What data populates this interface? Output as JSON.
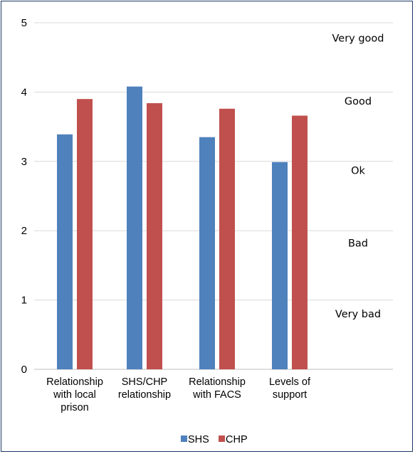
{
  "chart_data": {
    "type": "bar",
    "categories": [
      [
        "Relationship",
        "with local",
        "prison"
      ],
      [
        "SHS/CHP",
        "relationship"
      ],
      [
        "Relationship",
        "with FACS"
      ],
      [
        "Levels of",
        "support"
      ]
    ],
    "series": [
      {
        "name": "SHS",
        "values": [
          3.39,
          4.08,
          3.35,
          2.99
        ],
        "color": "#4f81bd"
      },
      {
        "name": "CHP",
        "values": [
          3.9,
          3.84,
          3.76,
          3.66
        ],
        "color": "#c0504d"
      }
    ],
    "ylim": [
      0,
      5
    ],
    "yticks": [
      "0",
      "1",
      "2",
      "3",
      "4",
      "5"
    ],
    "annotations": [
      {
        "label": "Very good",
        "y": 4.78
      },
      {
        "label": "Good",
        "y": 3.87
      },
      {
        "label": "Ok",
        "y": 2.87
      },
      {
        "label": "Bad",
        "y": 1.82
      },
      {
        "label": "Very bad",
        "y": 0.8
      }
    ],
    "grid": true,
    "legend_position": "bottom"
  }
}
